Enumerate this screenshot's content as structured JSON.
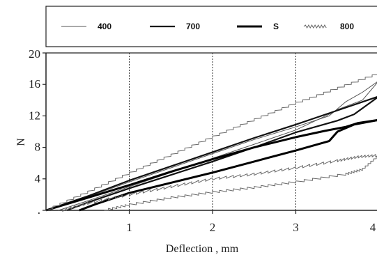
{
  "chart_data": {
    "type": "line",
    "xlabel": "Deflection , mm",
    "ylabel": "N",
    "xlim": [
      0,
      4
    ],
    "ylim": [
      0,
      20
    ],
    "x_ticks": [
      1,
      2,
      3,
      4
    ],
    "x_tick_labels": [
      "1",
      "2",
      "3",
      "4"
    ],
    "y_ticks": [
      0,
      4,
      8,
      12,
      16,
      20
    ],
    "y_tick_labels": [
      ".",
      "4",
      "8",
      "12",
      "16",
      "20"
    ],
    "grid": "vertical dotted at x = 1, 2, 3",
    "legend_position": "top",
    "series": [
      {
        "name": "400",
        "style": "thin",
        "loading": [
          [
            0,
            0
          ],
          [
            0.5,
            1.7
          ],
          [
            1,
            3.6
          ],
          [
            1.5,
            5.4
          ],
          [
            2,
            7.2
          ],
          [
            2.5,
            9
          ],
          [
            3,
            10.6
          ],
          [
            3.4,
            12
          ],
          [
            3.6,
            13.8
          ],
          [
            3.8,
            15
          ],
          [
            4,
            16.5
          ]
        ],
        "unloading": [
          [
            4,
            16.5
          ],
          [
            3.8,
            14
          ],
          [
            3.5,
            12.8
          ],
          [
            3.4,
            12.2
          ],
          [
            3,
            10.2
          ],
          [
            2.5,
            8.4
          ],
          [
            2,
            6.6
          ],
          [
            1.5,
            4.8
          ],
          [
            1,
            3
          ],
          [
            0.5,
            1.2
          ],
          [
            0.15,
            0
          ]
        ]
      },
      {
        "name": "700",
        "style": "thick",
        "loading": [
          [
            0,
            0
          ],
          [
            0.5,
            1.8
          ],
          [
            1,
            3.8
          ],
          [
            1.5,
            5.6
          ],
          [
            2,
            7.4
          ],
          [
            2.5,
            9.2
          ],
          [
            3,
            10.9
          ],
          [
            3.5,
            12.7
          ],
          [
            4,
            14.5
          ]
        ],
        "unloading": [
          [
            4,
            14.5
          ],
          [
            3.7,
            12.2
          ],
          [
            3.5,
            11.4
          ],
          [
            3,
            9.9
          ],
          [
            2.5,
            8
          ],
          [
            2,
            6.2
          ],
          [
            1.5,
            4.5
          ],
          [
            1,
            2.8
          ],
          [
            0.5,
            1
          ],
          [
            0.25,
            0
          ]
        ]
      },
      {
        "name": "S",
        "style": "thickest",
        "loading": [
          [
            0,
            0
          ],
          [
            0.5,
            1.6
          ],
          [
            1,
            3.2
          ],
          [
            1.5,
            4.9
          ],
          [
            2,
            6.5
          ],
          [
            2.5,
            8
          ],
          [
            3,
            9.3
          ],
          [
            3.35,
            10.1
          ],
          [
            3.6,
            10.6
          ],
          [
            3.75,
            11.1
          ],
          [
            4,
            11.5
          ]
        ],
        "unloading": [
          [
            4,
            11.5
          ],
          [
            3.7,
            10.9
          ],
          [
            3.5,
            10
          ],
          [
            3.4,
            8.8
          ],
          [
            3,
            7.6
          ],
          [
            2.5,
            6.2
          ],
          [
            2,
            4.8
          ],
          [
            1.5,
            3.5
          ],
          [
            1,
            2.2
          ],
          [
            0.6,
            0.8
          ],
          [
            0.4,
            0
          ]
        ]
      },
      {
        "name": "800",
        "style": "serrated",
        "loading": [
          [
            0,
            0
          ],
          [
            0.5,
            2.3
          ],
          [
            1,
            4.7
          ],
          [
            1.5,
            7
          ],
          [
            2,
            9.3
          ],
          [
            2.5,
            11.5
          ],
          [
            3,
            13.6
          ],
          [
            3.5,
            15.5
          ],
          [
            4,
            17.4
          ]
        ],
        "unloading": [
          [
            4,
            7
          ],
          [
            3.75,
            6.8
          ],
          [
            3.5,
            6.3
          ],
          [
            3,
            5.4
          ],
          [
            2.5,
            4.6
          ],
          [
            2,
            4
          ],
          [
            1.5,
            3
          ],
          [
            1,
            2
          ],
          [
            0.5,
            0.9
          ],
          [
            0.2,
            0
          ]
        ],
        "lower_branch": [
          [
            0.7,
            0
          ],
          [
            1,
            0.7
          ],
          [
            1.5,
            1.6
          ],
          [
            2,
            2.3
          ],
          [
            2.5,
            2.9
          ],
          [
            3,
            3.6
          ],
          [
            3.6,
            4.6
          ],
          [
            3.8,
            5.2
          ],
          [
            4,
            7
          ]
        ]
      }
    ]
  }
}
